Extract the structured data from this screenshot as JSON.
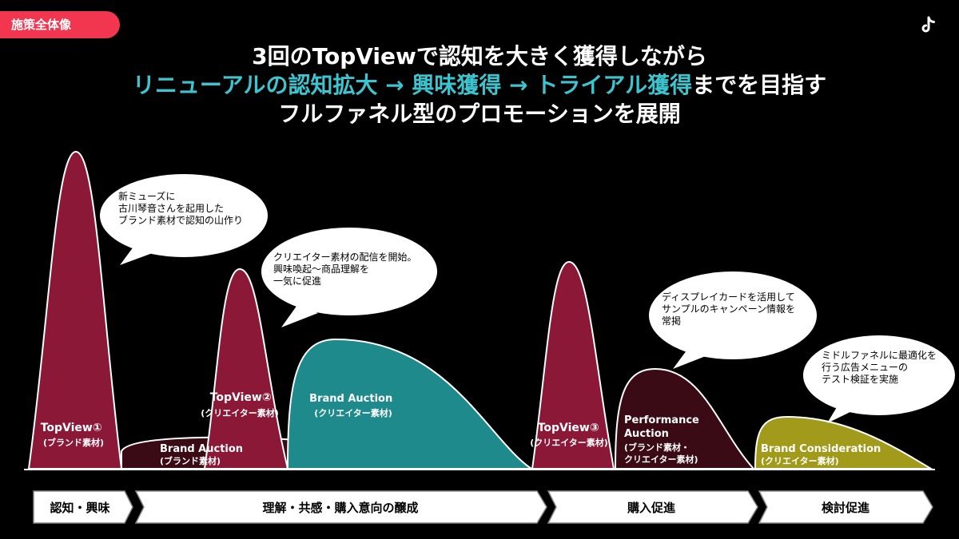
{
  "section_tag": "施策全体像",
  "logo_icon": "tiktok-logo-icon",
  "headline": {
    "line1": "3回のTopViewで認知を大きく獲得しながら",
    "line2_parts": [
      {
        "text": "リニューアルの認知拡大 → 興味獲得 → トライアル獲得",
        "accent": true
      },
      {
        "text": "までを目指す",
        "accent": false
      }
    ],
    "line3": "フルファネル型のプロモーションを展開"
  },
  "colors": {
    "maroon": "#8a1836",
    "dark_maroon": "#3a0b14",
    "teal": "#1e8a8c",
    "olive": "#a19a1b",
    "accent_cyan": "#3cc4cf",
    "tag_red": "#f2364f"
  },
  "mountains": [
    {
      "id": "topview1",
      "lines": [
        "TopView①",
        "(ブランド素材)"
      ]
    },
    {
      "id": "brand-auction-1",
      "lines": [
        "Brand Auction",
        "(ブランド素材)"
      ]
    },
    {
      "id": "topview2",
      "lines": [
        "TopView②",
        "(クリエイター素材)"
      ]
    },
    {
      "id": "brand-auction-2",
      "lines": [
        "Brand Auction",
        "(クリエイター素材)"
      ]
    },
    {
      "id": "topview3",
      "lines": [
        "TopView③",
        "(クリエイター素材)"
      ]
    },
    {
      "id": "performance-auction",
      "lines": [
        "Performance",
        "Auction",
        "(ブランド素材・",
        "クリエイター素材)"
      ]
    },
    {
      "id": "brand-consideration",
      "lines": [
        "Brand Consideration",
        "(クリエイター素材)"
      ]
    }
  ],
  "bubbles": [
    {
      "id": "bubble-1",
      "lines": [
        "新ミューズに",
        "古川琴音さんを起用した",
        "ブランド素材で認知の山作り"
      ]
    },
    {
      "id": "bubble-2",
      "lines": [
        "クリエイター素材の配信を開始。",
        "興味喚起〜商品理解を",
        "一気に促進"
      ]
    },
    {
      "id": "bubble-3",
      "lines": [
        "ディスプレイカードを活用して",
        "サンプルのキャンペーン情報を",
        "常掲"
      ]
    },
    {
      "id": "bubble-4",
      "lines": [
        "ミドルファネルに最適化を",
        "行う広告メニューの",
        "テスト検証を実施"
      ]
    }
  ],
  "stages": [
    "認知・興味",
    "理解・共感・購入意向の醸成",
    "購入促進",
    "検討促進"
  ]
}
